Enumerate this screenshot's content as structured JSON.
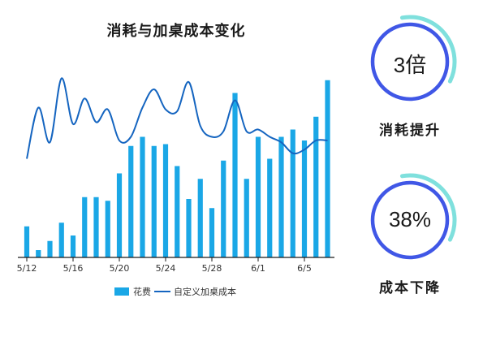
{
  "chart_data": {
    "type": "bar",
    "title": "消耗与加桌成本变化",
    "xlabel": "",
    "ylabel": "",
    "grid": false,
    "legend_position": "bottom",
    "x_tick_labels": [
      "5/12",
      "5/16",
      "5/20",
      "5/24",
      "5/28",
      "6/1",
      "6/5"
    ],
    "categories": [
      "5/12",
      "5/13",
      "5/14",
      "5/15",
      "5/16",
      "5/17",
      "5/18",
      "5/19",
      "5/20",
      "5/21",
      "5/22",
      "5/23",
      "5/24",
      "5/25",
      "5/26",
      "5/27",
      "5/28",
      "5/29",
      "5/30",
      "5/31",
      "6/1",
      "6/2",
      "6/3",
      "6/4",
      "6/5",
      "6/6",
      "6/7"
    ],
    "ylim": [
      0,
      100
    ],
    "series": [
      {
        "name": "花费",
        "type": "bar",
        "color": "#1aa7e6",
        "values": [
          17,
          4,
          9,
          19,
          12,
          33,
          33,
          31,
          46,
          61,
          66,
          61,
          62,
          50,
          32,
          43,
          27,
          53,
          90,
          43,
          66,
          54,
          66,
          70,
          64,
          77,
          97
        ]
      },
      {
        "name": "自定义加桌成本",
        "type": "line",
        "color": "#1565c0",
        "values": [
          54,
          82,
          63,
          98,
          73,
          87,
          74,
          81,
          64,
          66,
          82,
          92,
          81,
          80,
          96,
          72,
          66,
          69,
          86,
          69,
          70,
          66,
          63,
          57,
          59,
          64,
          64
        ]
      }
    ]
  },
  "kpis": [
    {
      "value": "3倍",
      "label": "消耗提升",
      "progress": 0.75
    },
    {
      "value": "38%",
      "label": "成本下降",
      "progress": 0.38
    }
  ],
  "colors": {
    "bar": "#1aa7e6",
    "line": "#1565c0",
    "ring": "#4057e6",
    "ring_accent": "#7fe0dd",
    "axis": "#1a1a1a"
  }
}
